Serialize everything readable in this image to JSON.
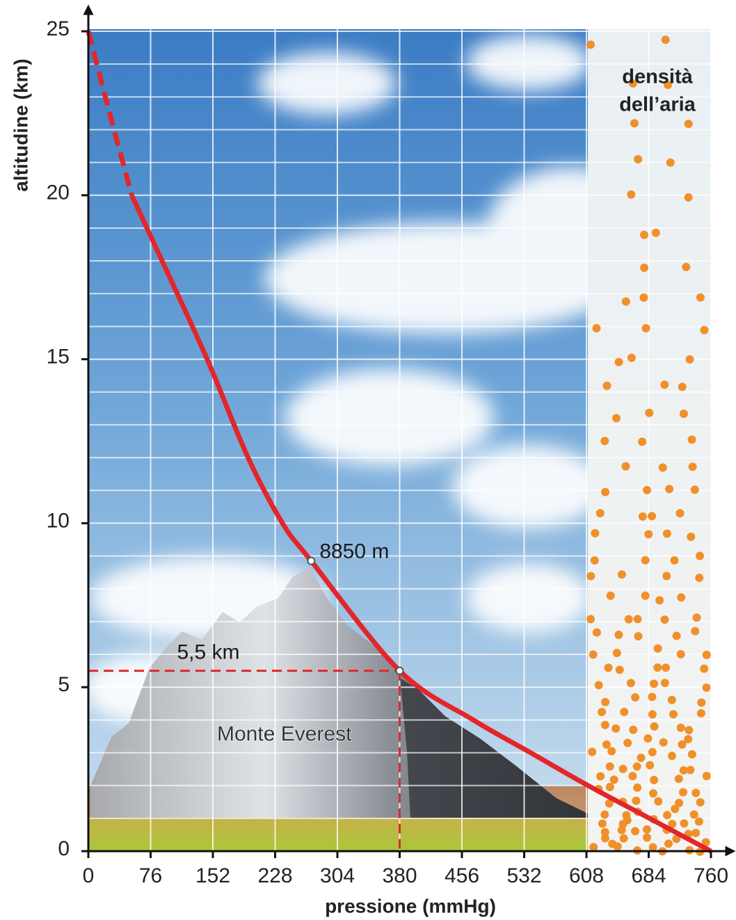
{
  "chart_data": {
    "type": "line",
    "x_label": "pressione  (mmHg)",
    "y_label": "altitudine (km)",
    "xlim": [
      0,
      760
    ],
    "xticks": [
      0,
      76,
      152,
      228,
      304,
      380,
      456,
      532,
      608,
      684,
      760
    ],
    "ylim": [
      0,
      25
    ],
    "yticks": [
      0,
      5,
      10,
      15,
      20,
      25
    ],
    "y_minor_ticks": [
      1,
      2,
      3,
      4,
      6,
      7,
      8,
      9,
      11,
      12,
      13,
      14,
      16,
      17,
      18,
      19,
      21,
      22,
      23,
      24
    ],
    "grid": true,
    "series": [
      {
        "color": "#e3262a",
        "dashed": true,
        "x": [
          0,
          26,
          53
        ],
        "values": [
          25,
          22.5,
          20
        ]
      },
      {
        "color": "#e3262a",
        "dashed": false,
        "x": [
          53,
          90,
          145,
          195,
          237,
          272,
          380,
          470,
          540,
          610,
          685,
          760
        ],
        "values": [
          20,
          18,
          15,
          12,
          10,
          8.85,
          5.5,
          4,
          3,
          2,
          1,
          0
        ]
      }
    ],
    "annotations": [
      {
        "text": "8850  m",
        "x": 272,
        "y": 8.85,
        "guides": false
      },
      {
        "text": "5,5  km",
        "x": 380,
        "y": 5.5,
        "guides": true
      }
    ],
    "mountain_label": "Monte  Everest",
    "density_region": {
      "x_from": 608,
      "label": [
        "densità",
        "dell’aria"
      ]
    }
  }
}
